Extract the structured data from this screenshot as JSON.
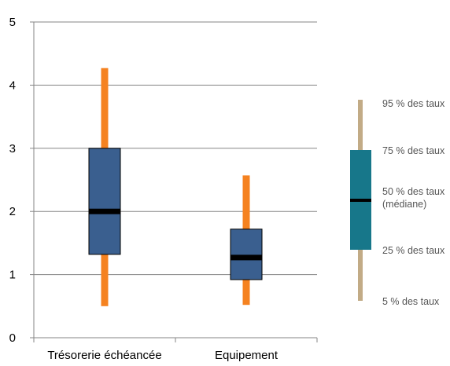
{
  "chart_data": {
    "type": "boxplot",
    "categories": [
      "Trésorerie échéancée",
      "Equipement"
    ],
    "boxes": [
      {
        "p5": 0.5,
        "p25": 1.32,
        "p50": 2.0,
        "p75": 3.0,
        "p95": 4.27
      },
      {
        "p5": 0.52,
        "p25": 0.92,
        "p50": 1.27,
        "p75": 1.72,
        "p95": 2.57
      }
    ],
    "ylim": [
      0,
      5
    ],
    "yticks": [
      "0",
      "1",
      "2",
      "3",
      "4",
      "5"
    ],
    "grid": true,
    "colors": {
      "box": "#3a5f8f",
      "whisker": "#f58220",
      "median": "#000000",
      "axis": "#868686",
      "legend_box": "#17778a",
      "legend_whisker": "#c2ab86"
    },
    "legend": {
      "placement": "right",
      "labels": {
        "p95": "95 % des taux",
        "p75": "75 % des taux",
        "p50_line1": "50 % des taux",
        "p50_line2": "(médiane)",
        "p25": "25 % des taux",
        "p5": "5 % des taux"
      }
    }
  }
}
